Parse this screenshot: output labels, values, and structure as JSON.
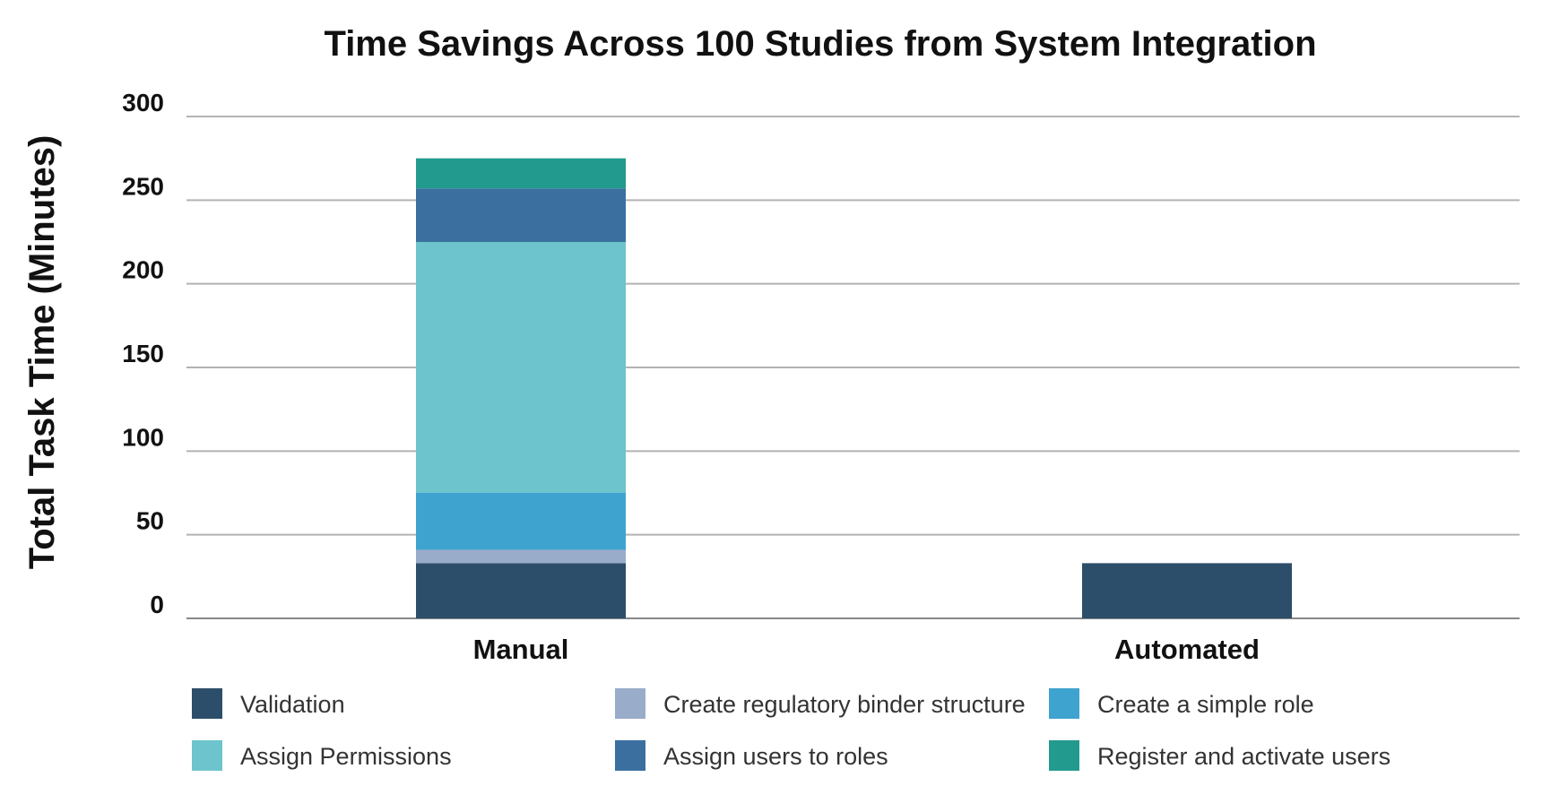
{
  "chart_data": {
    "type": "bar",
    "stacked": true,
    "title": "Time Savings Across 100 Studies from System Integration",
    "xlabel": "",
    "ylabel": "Total Task Time (Minutes)",
    "ylim": [
      0,
      300
    ],
    "yticks": [
      0,
      50,
      100,
      150,
      200,
      250,
      300
    ],
    "grid": true,
    "legend_position": "bottom",
    "categories": [
      "Manual",
      "Automated"
    ],
    "series": [
      {
        "name": "Validation",
        "color": "#2d4e6a",
        "values": [
          33,
          33
        ]
      },
      {
        "name": "Create regulatory binder structure",
        "color": "#99acc9",
        "values": [
          8,
          0
        ]
      },
      {
        "name": "Create a simple role",
        "color": "#3ea3cf",
        "values": [
          34,
          0
        ]
      },
      {
        "name": "Assign Permissions",
        "color": "#6dc4cc",
        "values": [
          150,
          0
        ]
      },
      {
        "name": "Assign users to roles",
        "color": "#3b6fa0",
        "values": [
          32,
          0
        ]
      },
      {
        "name": "Register and activate users",
        "color": "#229b8e",
        "values": [
          18,
          0
        ]
      }
    ],
    "legend_order": [
      "Validation",
      "Create regulatory binder structure",
      "Create a simple role",
      "Assign Permissions",
      "Assign users to roles",
      "Register and activate users"
    ],
    "colors": {
      "grid": "#b3b3b3",
      "axis": "#888888",
      "text": "#111111",
      "legend_text": "#333333"
    }
  }
}
